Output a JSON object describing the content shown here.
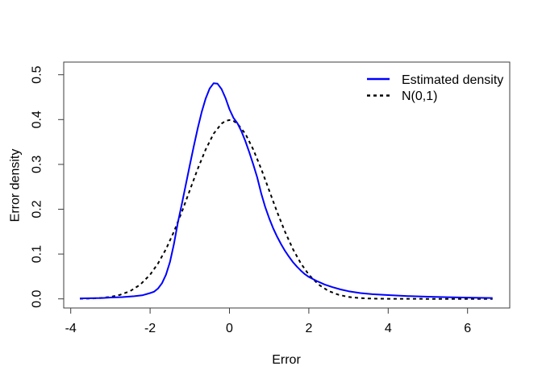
{
  "figure": {
    "background": "#ffffff",
    "xlabel": "Error",
    "ylabel": "Error density",
    "legend": {
      "position": "top-right",
      "frame": false,
      "items": [
        {
          "label": "Estimated density",
          "color": "#0000ff",
          "style": "solid"
        },
        {
          "label": "N(0,1)",
          "color": "#000000",
          "style": "dashed"
        }
      ]
    }
  },
  "chart_data": {
    "type": "line",
    "title": "",
    "xlabel": "Error",
    "ylabel": "Error density",
    "xlim": [
      -4.18,
      7.06
    ],
    "ylim": [
      -0.02,
      0.528
    ],
    "x_ticks": [
      -4,
      -2,
      0,
      2,
      4,
      6
    ],
    "x_tick_labels": [
      "-4",
      "-2",
      "0",
      "2",
      "4",
      "6"
    ],
    "y_ticks": [
      0.0,
      0.1,
      0.2,
      0.3,
      0.4,
      0.5
    ],
    "y_tick_labels": [
      "0.0",
      "0.1",
      "0.2",
      "0.3",
      "0.4",
      "0.5"
    ],
    "grid": false,
    "legend_position": "top-right",
    "series": [
      {
        "name": "Estimated density",
        "color": "#0000ff",
        "line_style": "solid",
        "line_width": 2,
        "points": [
          [
            -3.77,
            0.001
          ],
          [
            -3.5,
            0.0015
          ],
          [
            -3.2,
            0.002
          ],
          [
            -3.0,
            0.003
          ],
          [
            -2.7,
            0.004
          ],
          [
            -2.4,
            0.006
          ],
          [
            -2.2,
            0.008
          ],
          [
            -2.0,
            0.013
          ],
          [
            -1.9,
            0.016
          ],
          [
            -1.8,
            0.023
          ],
          [
            -1.7,
            0.035
          ],
          [
            -1.6,
            0.054
          ],
          [
            -1.5,
            0.082
          ],
          [
            -1.4,
            0.122
          ],
          [
            -1.3,
            0.17
          ],
          [
            -1.2,
            0.212
          ],
          [
            -1.1,
            0.255
          ],
          [
            -1.0,
            0.298
          ],
          [
            -0.9,
            0.34
          ],
          [
            -0.8,
            0.38
          ],
          [
            -0.7,
            0.417
          ],
          [
            -0.6,
            0.447
          ],
          [
            -0.5,
            0.469
          ],
          [
            -0.4,
            0.481
          ],
          [
            -0.3,
            0.48
          ],
          [
            -0.2,
            0.468
          ],
          [
            -0.1,
            0.448
          ],
          [
            0.0,
            0.423
          ],
          [
            0.1,
            0.404
          ],
          [
            0.2,
            0.392
          ],
          [
            0.3,
            0.374
          ],
          [
            0.4,
            0.352
          ],
          [
            0.5,
            0.327
          ],
          [
            0.6,
            0.3
          ],
          [
            0.7,
            0.271
          ],
          [
            0.8,
            0.235
          ],
          [
            0.9,
            0.205
          ],
          [
            1.0,
            0.18
          ],
          [
            1.1,
            0.158
          ],
          [
            1.2,
            0.139
          ],
          [
            1.3,
            0.122
          ],
          [
            1.4,
            0.107
          ],
          [
            1.5,
            0.094
          ],
          [
            1.6,
            0.082
          ],
          [
            1.7,
            0.072
          ],
          [
            1.8,
            0.063
          ],
          [
            1.9,
            0.055
          ],
          [
            2.0,
            0.049
          ],
          [
            2.2,
            0.04
          ],
          [
            2.4,
            0.032
          ],
          [
            2.6,
            0.026
          ],
          [
            2.8,
            0.021
          ],
          [
            3.0,
            0.017
          ],
          [
            3.3,
            0.013
          ],
          [
            3.6,
            0.0105
          ],
          [
            4.0,
            0.0085
          ],
          [
            4.5,
            0.0063
          ],
          [
            5.0,
            0.0048
          ],
          [
            5.5,
            0.0037
          ],
          [
            6.0,
            0.0028
          ],
          [
            6.3,
            0.0024
          ],
          [
            6.63,
            0.002
          ]
        ]
      },
      {
        "name": "N(0,1)",
        "color": "#000000",
        "line_style": "dashed",
        "line_width": 2,
        "points": [
          [
            -3.77,
            0.0003
          ],
          [
            -3.5,
            0.0009
          ],
          [
            -3.25,
            0.002
          ],
          [
            -3.0,
            0.0044
          ],
          [
            -2.75,
            0.0091
          ],
          [
            -2.5,
            0.0175
          ],
          [
            -2.25,
            0.0317
          ],
          [
            -2.0,
            0.054
          ],
          [
            -1.8,
            0.079
          ],
          [
            -1.6,
            0.1109
          ],
          [
            -1.4,
            0.1497
          ],
          [
            -1.2,
            0.1942
          ],
          [
            -1.0,
            0.242
          ],
          [
            -0.8,
            0.2897
          ],
          [
            -0.6,
            0.3332
          ],
          [
            -0.4,
            0.3683
          ],
          [
            -0.2,
            0.391
          ],
          [
            -0.1,
            0.397
          ],
          [
            0.0,
            0.3989
          ],
          [
            0.1,
            0.397
          ],
          [
            0.2,
            0.391
          ],
          [
            0.4,
            0.3683
          ],
          [
            0.6,
            0.3332
          ],
          [
            0.8,
            0.2897
          ],
          [
            1.0,
            0.242
          ],
          [
            1.2,
            0.1942
          ],
          [
            1.4,
            0.1497
          ],
          [
            1.6,
            0.1109
          ],
          [
            1.8,
            0.079
          ],
          [
            2.0,
            0.054
          ],
          [
            2.25,
            0.0317
          ],
          [
            2.5,
            0.0175
          ],
          [
            2.75,
            0.0091
          ],
          [
            3.0,
            0.0044
          ],
          [
            3.25,
            0.002
          ],
          [
            3.5,
            0.0009
          ],
          [
            3.75,
            0.0004
          ],
          [
            4.0,
            0.0001
          ],
          [
            4.5,
            0.0001
          ],
          [
            5.0,
            0.0
          ],
          [
            5.5,
            0.0
          ],
          [
            6.0,
            0.0
          ],
          [
            6.63,
            0.0
          ]
        ]
      }
    ]
  }
}
